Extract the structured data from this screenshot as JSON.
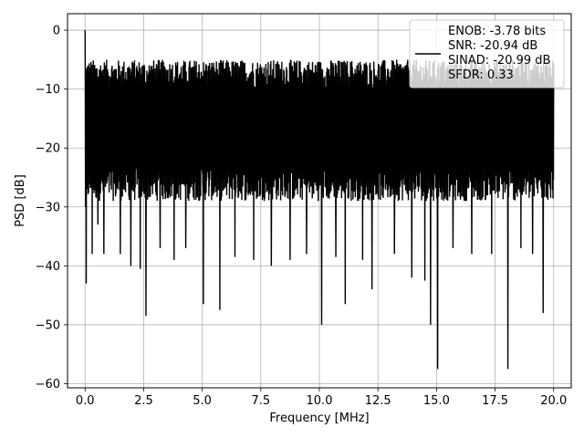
{
  "chart_data": {
    "type": "line",
    "title": "",
    "xlabel": "Frequency [MHz]",
    "ylabel": "PSD [dB]",
    "xlim": [
      -0.75,
      20.75
    ],
    "ylim": [
      -60.7,
      2.8
    ],
    "xticks": [
      0.0,
      2.5,
      5.0,
      7.5,
      10.0,
      12.5,
      15.0,
      17.5,
      20.0
    ],
    "xtick_labels": [
      "0.0",
      "2.5",
      "5.0",
      "7.5",
      "10.0",
      "12.5",
      "15.0",
      "17.5",
      "20.0"
    ],
    "yticks": [
      0,
      -10,
      -20,
      -30,
      -40,
      -50,
      -60
    ],
    "ytick_labels": [
      "0",
      "−10",
      "−20",
      "−30",
      "−40",
      "−50",
      "−60"
    ],
    "grid": true,
    "legend_position": "top-right",
    "series": [
      {
        "color": "#000000",
        "noise_floor_db": -20,
        "noise_band_db": [
          -8,
          -28
        ],
        "peak": {
          "x": 0.0,
          "y": 0.0
        },
        "dips": [
          {
            "x": 0.05,
            "y": -43
          },
          {
            "x": 0.3,
            "y": -38
          },
          {
            "x": 0.55,
            "y": -33
          },
          {
            "x": 0.8,
            "y": -38
          },
          {
            "x": 1.5,
            "y": -38
          },
          {
            "x": 1.95,
            "y": -40
          },
          {
            "x": 2.35,
            "y": -40.5
          },
          {
            "x": 2.6,
            "y": -48.5
          },
          {
            "x": 3.2,
            "y": -37
          },
          {
            "x": 3.8,
            "y": -39
          },
          {
            "x": 4.3,
            "y": -37
          },
          {
            "x": 5.05,
            "y": -46.5
          },
          {
            "x": 5.75,
            "y": -47.5
          },
          {
            "x": 6.4,
            "y": -38.5
          },
          {
            "x": 7.2,
            "y": -39
          },
          {
            "x": 7.95,
            "y": -40
          },
          {
            "x": 8.75,
            "y": -39
          },
          {
            "x": 9.45,
            "y": -38
          },
          {
            "x": 10.1,
            "y": -50
          },
          {
            "x": 10.7,
            "y": -38.5
          },
          {
            "x": 11.1,
            "y": -46.5
          },
          {
            "x": 11.85,
            "y": -39
          },
          {
            "x": 12.25,
            "y": -44
          },
          {
            "x": 13.2,
            "y": -38
          },
          {
            "x": 13.95,
            "y": -42
          },
          {
            "x": 14.5,
            "y": -42.5
          },
          {
            "x": 14.75,
            "y": -50
          },
          {
            "x": 15.05,
            "y": -57.5
          },
          {
            "x": 15.7,
            "y": -37
          },
          {
            "x": 16.5,
            "y": -38
          },
          {
            "x": 17.35,
            "y": -38
          },
          {
            "x": 18.05,
            "y": -57.5
          },
          {
            "x": 18.6,
            "y": -37
          },
          {
            "x": 19.1,
            "y": -38
          },
          {
            "x": 19.55,
            "y": -48
          }
        ]
      }
    ],
    "legend": {
      "lines": [
        "ENOB: -3.78 bits",
        "SNR: -20.94 dB",
        "SINAD: -20.99 dB",
        "SFDR: 0.33"
      ]
    }
  }
}
